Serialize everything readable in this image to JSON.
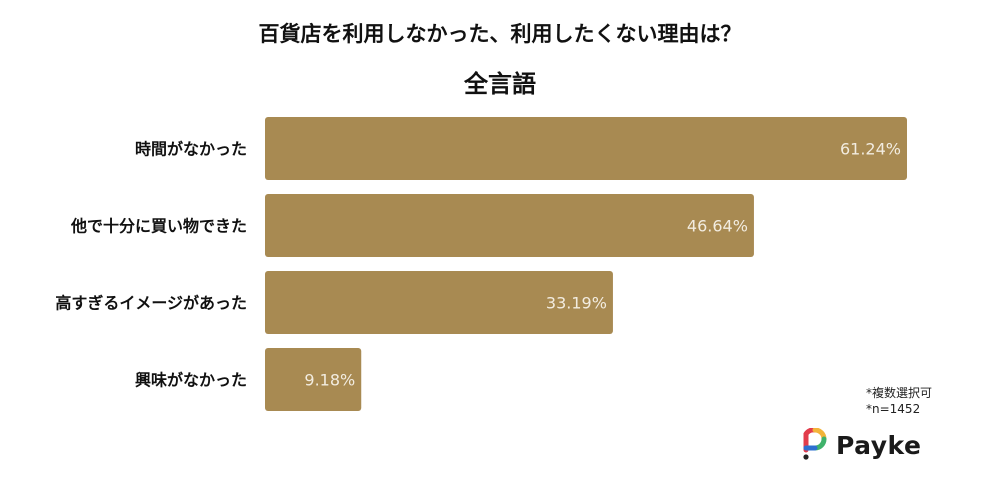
{
  "title": "百貨店を利用しなかった、利用したくない理由は？",
  "subtitle": "全言語",
  "colors": {
    "bar": "#a88a52",
    "bar_label": "#f2ece0"
  },
  "chart_data": {
    "type": "bar",
    "orientation": "horizontal",
    "title": "百貨店を利用しなかった、利用したくない理由は？",
    "subtitle": "全言語",
    "categories": [
      "時間がなかった",
      "他で十分に買い物できた",
      "高すぎるイメージがあった",
      "興味がなかった"
    ],
    "values": [
      61.24,
      46.64,
      33.19,
      9.18
    ],
    "value_labels": [
      "61.24%",
      "46.64%",
      "33.19%",
      "9.18%"
    ],
    "xlim": [
      0,
      100
    ],
    "unit": "%",
    "grid": false,
    "legend": "none"
  },
  "notes": [
    "*複数選択可",
    "*n=1452"
  ],
  "brand": {
    "name": "Payke",
    "icon": "payke-logo-icon"
  }
}
